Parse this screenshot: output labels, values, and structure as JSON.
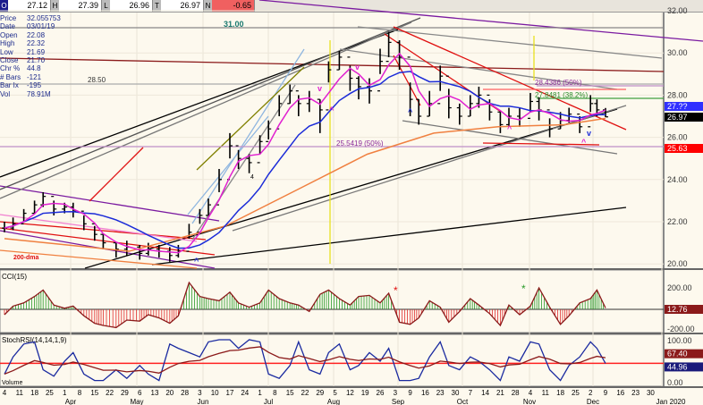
{
  "header": {
    "fields": [
      {
        "key": "O",
        "value": "27.12"
      },
      {
        "key": "H",
        "value": "27.39"
      },
      {
        "key": "L",
        "value": "26.96"
      },
      {
        "key": "T",
        "value": "26.97"
      },
      {
        "key": "N",
        "value": "-0.65"
      }
    ],
    "accent_negative": "#f06060"
  },
  "info_panel": [
    {
      "label": "Price",
      "value": "32.055753"
    },
    {
      "label": "Date",
      "value": "03/01/19"
    },
    {
      "label": "Open",
      "value": "22.08"
    },
    {
      "label": "High",
      "value": "22.32"
    },
    {
      "label": "Low",
      "value": "21.69"
    },
    {
      "label": "Close",
      "value": "21.70"
    },
    {
      "label": "Chr %",
      "value": "44.8"
    },
    {
      "label": "# Bars",
      "value": "-121"
    },
    {
      "label": "Bar Ix",
      "value": "-195"
    },
    {
      "label": "Vol",
      "value": "78.91M"
    }
  ],
  "annotations": {
    "level_3100": "31.00",
    "level_2850": "28.50",
    "fib_60": "28.4386 (50%)",
    "fib_382": "27.8481 (38.2%)",
    "fib_50": "25.5419 (50%)",
    "ma_label": "200-dma",
    "pivot_marks": [
      "4"
    ]
  },
  "chart_data": [
    {
      "type": "ohlc",
      "panel": "price",
      "ylim": [
        20,
        32
      ],
      "yticks": [
        "32.00",
        "30.00",
        "28.00",
        "26.00",
        "24.00",
        "22.00",
        "20.00"
      ],
      "last_value_tags": [
        {
          "value": "27.??",
          "color": "#3030ff"
        },
        {
          "value": "26.97",
          "color": "#000000"
        },
        {
          "value": "25.63",
          "color": "#ff0000"
        }
      ],
      "dates": [
        "2019-03-04",
        "2019-03-08",
        "2019-03-13",
        "2019-03-18",
        "2019-03-22",
        "2019-03-27",
        "2019-04-01",
        "2019-04-05",
        "2019-04-10",
        "2019-04-15",
        "2019-04-19",
        "2019-04-25",
        "2019-04-30",
        "2019-05-06",
        "2019-05-10",
        "2019-05-15",
        "2019-05-20",
        "2019-05-24",
        "2019-05-29",
        "2019-06-03",
        "2019-06-07",
        "2019-06-12",
        "2019-06-17",
        "2019-06-21",
        "2019-06-26",
        "2019-07-01",
        "2019-07-05",
        "2019-07-10",
        "2019-07-15",
        "2019-07-19",
        "2019-07-24",
        "2019-07-29",
        "2019-08-02",
        "2019-08-07",
        "2019-08-12",
        "2019-08-16",
        "2019-08-21",
        "2019-08-26",
        "2019-08-30",
        "2019-09-04",
        "2019-09-09",
        "2019-09-13",
        "2019-09-18",
        "2019-09-23",
        "2019-09-27",
        "2019-10-02",
        "2019-10-07",
        "2019-10-11",
        "2019-10-16",
        "2019-10-21",
        "2019-10-25",
        "2019-10-30",
        "2019-11-04",
        "2019-11-08",
        "2019-11-13",
        "2019-11-18",
        "2019-11-22",
        "2019-11-27",
        "2019-12-02",
        "2019-12-05",
        "2019-12-09"
      ],
      "high": [
        22.0,
        22.2,
        22.6,
        23.0,
        23.4,
        23.0,
        22.9,
        22.9,
        22.3,
        21.8,
        21.4,
        21.0,
        21.1,
        20.9,
        21.0,
        20.9,
        20.8,
        20.9,
        21.9,
        22.6,
        23.1,
        24.5,
        26.2,
        25.4,
        25.2,
        26.1,
        26.8,
        28.0,
        28.5,
        28.0,
        28.2,
        27.8,
        29.6,
        30.1,
        29.4,
        28.9,
        28.8,
        30.2,
        31.0,
        30.6,
        28.6,
        27.8,
        28.2,
        29.4,
        28.3,
        27.6,
        28.0,
        28.4,
        27.8,
        27.2,
        27.4,
        27.4,
        28.1,
        27.9,
        26.9,
        27.2,
        27.4,
        27.0,
        28.0,
        27.8,
        27.39
      ],
      "low": [
        21.5,
        21.6,
        22.0,
        22.4,
        22.7,
        22.3,
        22.4,
        22.2,
        21.6,
        21.1,
        20.7,
        20.3,
        20.4,
        20.2,
        20.4,
        20.3,
        20.1,
        20.3,
        21.2,
        21.9,
        22.3,
        23.4,
        25.0,
        24.5,
        24.3,
        25.2,
        25.9,
        27.0,
        27.6,
        27.0,
        27.2,
        26.2,
        28.6,
        29.2,
        28.2,
        27.8,
        27.6,
        29.0,
        29.8,
        29.2,
        27.0,
        26.6,
        27.0,
        28.2,
        26.9,
        26.6,
        27.0,
        27.4,
        26.8,
        26.2,
        26.5,
        26.5,
        27.2,
        26.8,
        26.0,
        26.4,
        26.7,
        26.2,
        27.2,
        27.0,
        26.96
      ],
      "close": [
        21.7,
        21.9,
        22.4,
        22.8,
        23.2,
        22.6,
        22.7,
        22.5,
        21.9,
        21.4,
        21.0,
        20.7,
        20.8,
        20.5,
        20.7,
        20.6,
        20.4,
        20.6,
        21.5,
        22.3,
        22.8,
        24.0,
        25.6,
        25.0,
        24.8,
        25.8,
        26.4,
        27.6,
        28.2,
        27.6,
        27.8,
        27.3,
        29.2,
        29.8,
        28.8,
        28.4,
        28.2,
        29.6,
        30.5,
        29.8,
        27.8,
        27.0,
        27.6,
        28.9,
        27.4,
        27.0,
        27.6,
        28.0,
        27.2,
        26.6,
        27.0,
        26.9,
        27.7,
        27.3,
        26.4,
        26.8,
        27.1,
        26.5,
        27.6,
        27.3,
        26.97
      ],
      "ma_long": {
        "dates": [
          "2019-03-04",
          "2019-05-01",
          "2019-06-15",
          "2019-07-20",
          "2019-08-20",
          "2019-09-20",
          "2019-10-20",
          "2019-11-20",
          "2019-12-09"
        ],
        "values": [
          21.2,
          20.6,
          21.8,
          23.6,
          25.2,
          26.2,
          26.5,
          26.6,
          26.9
        ],
        "color": "#f08040"
      },
      "ma_mid_color": "#1b2bd8",
      "ma_short_color": "#e020d0"
    },
    {
      "type": "bar",
      "panel": "CCI",
      "title": "CCI(15)",
      "ylim": [
        -230,
        280
      ],
      "yticks": [
        "200.00",
        "-200.00"
      ],
      "last_value": "12.76",
      "values": [
        -50,
        30,
        60,
        120,
        180,
        40,
        10,
        30,
        -60,
        -130,
        -150,
        -170,
        -100,
        -110,
        -50,
        -80,
        -130,
        -60,
        250,
        120,
        100,
        80,
        160,
        60,
        20,
        60,
        180,
        100,
        60,
        40,
        -20,
        140,
        180,
        100,
        40,
        120,
        130,
        60,
        150,
        -120,
        -140,
        -80,
        80,
        20,
        -120,
        -20,
        100,
        40,
        -40,
        -150,
        40,
        -50,
        30,
        200,
        20,
        -140,
        -60,
        60,
        100,
        180,
        12.76
      ]
    },
    {
      "type": "line",
      "panel": "StochRSI",
      "title": "StochRSI(14,14,1,9)",
      "ylim": [
        0,
        100
      ],
      "yticks": [
        "100.00",
        "0.00"
      ],
      "last_values": [
        "67.40",
        "44.96"
      ],
      "values": [
        20,
        60,
        90,
        95,
        30,
        15,
        50,
        70,
        20,
        5,
        5,
        30,
        10,
        40,
        20,
        5,
        90,
        80,
        70,
        60,
        95,
        100,
        100,
        80,
        100,
        95,
        20,
        10,
        40,
        95,
        30,
        20,
        70,
        90,
        30,
        40,
        70,
        50,
        80,
        5,
        5,
        10,
        60,
        95,
        40,
        30,
        60,
        50,
        30,
        5,
        60,
        50,
        95,
        90,
        30,
        5,
        40,
        60,
        95,
        80,
        44.96
      ]
    }
  ],
  "xaxis": {
    "days": [
      "4",
      "11",
      "18",
      "25",
      "1",
      "8",
      "15",
      "22",
      "29",
      "6",
      "13",
      "20",
      "28",
      "3",
      "10",
      "17",
      "24",
      "1",
      "8",
      "15",
      "22",
      "29",
      "5",
      "12",
      "19",
      "26",
      "3",
      "9",
      "16",
      "23",
      "30",
      "7",
      "14",
      "21",
      "28",
      "4",
      "11",
      "18",
      "25",
      "2",
      "9",
      "16",
      "23",
      "30"
    ],
    "months": [
      "Apr",
      "May",
      "Jun",
      "Jul",
      "Aug",
      "Sep",
      "Oct",
      "Nov",
      "Dec",
      "Jan 2020"
    ],
    "volume_label": "Volume"
  }
}
